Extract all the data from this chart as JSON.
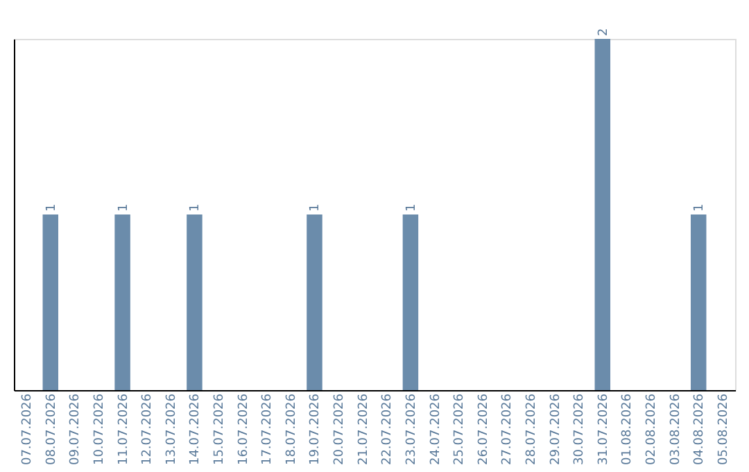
{
  "chart_data": {
    "type": "bar",
    "categories": [
      "07.07.2026",
      "08.07.2026",
      "09.07.2026",
      "10.07.2026",
      "11.07.2026",
      "12.07.2026",
      "13.07.2026",
      "14.07.2026",
      "15.07.2026",
      "16.07.2026",
      "17.07.2026",
      "18.07.2026",
      "19.07.2026",
      "20.07.2026",
      "21.07.2026",
      "22.07.2026",
      "23.07.2026",
      "24.07.2026",
      "25.07.2026",
      "26.07.2026",
      "27.07.2026",
      "28.07.2026",
      "29.07.2026",
      "30.07.2026",
      "31.07.2026",
      "01.08.2026",
      "02.08.2026",
      "03.08.2026",
      "04.08.2026",
      "05.08.2026"
    ],
    "values": [
      0,
      1,
      0,
      0,
      1,
      0,
      0,
      1,
      0,
      0,
      0,
      0,
      1,
      0,
      0,
      0,
      1,
      0,
      0,
      0,
      0,
      0,
      0,
      0,
      2,
      0,
      0,
      0,
      1,
      0
    ],
    "value_labels": [
      null,
      "1",
      null,
      null,
      "1",
      null,
      null,
      "1",
      null,
      null,
      null,
      null,
      "1",
      null,
      null,
      null,
      "1",
      null,
      null,
      null,
      null,
      null,
      null,
      null,
      "2",
      null,
      null,
      null,
      "1",
      null
    ],
    "color": "#6b8cab",
    "grid": false,
    "tick_labels": "x"
  }
}
